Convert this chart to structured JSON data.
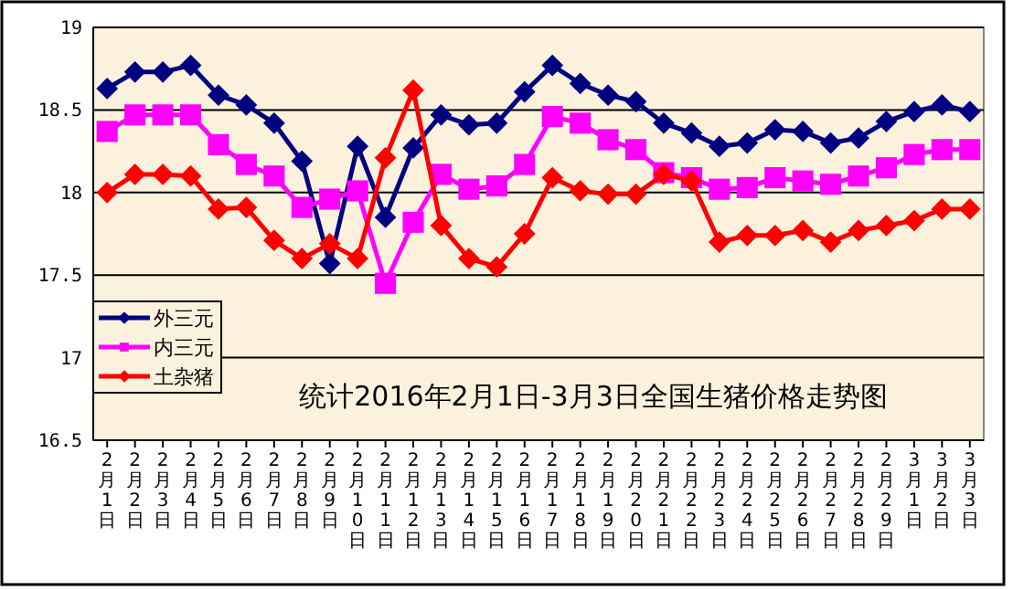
{
  "chart_data": {
    "type": "line",
    "title": "统计2016年2月1日-3月3日全国生猪价格走势图",
    "categories": [
      "2月1日",
      "2月2日",
      "2月3日",
      "2月4日",
      "2月5日",
      "2月6日",
      "2月7日",
      "2月8日",
      "2月9日",
      "2月10日",
      "2月11日",
      "2月12日",
      "2月13日",
      "2月14日",
      "2月15日",
      "2月16日",
      "2月17日",
      "2月18日",
      "2月19日",
      "2月20日",
      "2月21日",
      "2月22日",
      "2月23日",
      "2月24日",
      "2月25日",
      "2月26日",
      "2月27日",
      "2月28日",
      "2月29日",
      "3月1日",
      "3月2日",
      "3月3日"
    ],
    "series": [
      {
        "name": "外三元",
        "color": "#000080",
        "marker": "diamond",
        "values": [
          18.63,
          18.73,
          18.73,
          18.77,
          18.59,
          18.53,
          18.42,
          18.19,
          17.57,
          18.28,
          17.85,
          18.27,
          18.47,
          18.41,
          18.42,
          18.61,
          18.77,
          18.66,
          18.59,
          18.55,
          18.42,
          18.36,
          18.28,
          18.3,
          18.38,
          18.37,
          18.3,
          18.33,
          18.43,
          18.49,
          18.53,
          18.49
        ]
      },
      {
        "name": "内三元",
        "color": "#ff00ff",
        "marker": "square",
        "values": [
          18.37,
          18.47,
          18.47,
          18.47,
          18.29,
          18.17,
          18.1,
          17.91,
          17.96,
          18.01,
          17.45,
          17.82,
          18.11,
          18.02,
          18.04,
          18.17,
          18.46,
          18.42,
          18.32,
          18.26,
          18.12,
          18.09,
          18.02,
          18.03,
          18.09,
          18.07,
          18.05,
          18.1,
          18.15,
          18.23,
          18.26,
          18.26
        ]
      },
      {
        "name": "土杂猪",
        "color": "#ff0000",
        "marker": "diamond",
        "values": [
          18.0,
          18.11,
          18.11,
          18.1,
          17.9,
          17.91,
          17.71,
          17.6,
          17.69,
          17.6,
          18.21,
          18.62,
          17.8,
          17.6,
          17.55,
          17.75,
          18.09,
          18.01,
          17.99,
          17.99,
          18.11,
          18.07,
          17.7,
          17.74,
          17.74,
          17.77,
          17.7,
          17.77,
          17.8,
          17.83,
          17.9,
          17.9
        ]
      }
    ],
    "ylim": [
      16.5,
      19
    ],
    "yticks": [
      {
        "value": 16.5,
        "label": "16.5"
      },
      {
        "value": 17,
        "label": "17"
      },
      {
        "value": 17.5,
        "label": "17.5"
      },
      {
        "value": 18,
        "label": "18"
      },
      {
        "value": 18.5,
        "label": "18.5"
      },
      {
        "value": 19,
        "label": "19"
      }
    ],
    "grid": "y",
    "legend": "bottom left",
    "line_style": "solid"
  }
}
